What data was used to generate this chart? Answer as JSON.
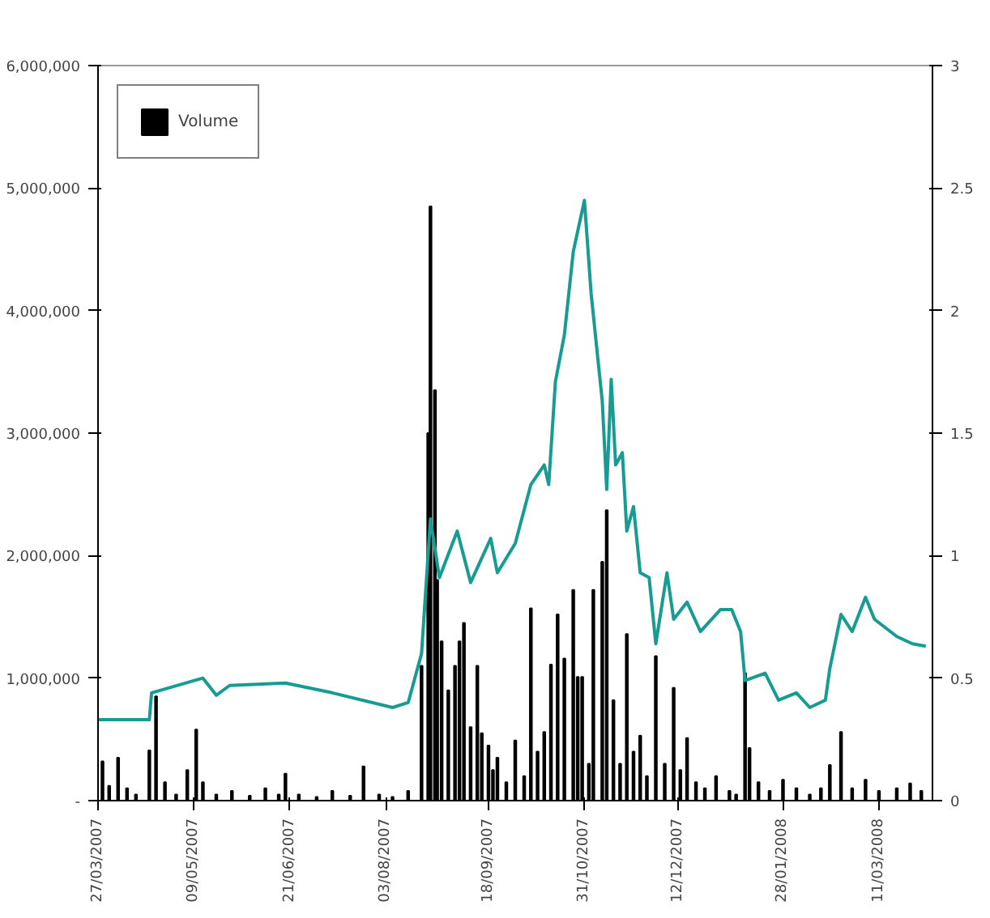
{
  "chart_data": {
    "type": "bar",
    "legend": "top left",
    "grid": false,
    "xlim": [
      "2007-03-27",
      "2008-04-04"
    ],
    "xticks": [
      {
        "value": "2007-03-27",
        "label": "27/03/2007"
      },
      {
        "value": "2007-05-09",
        "label": "09/05/2007"
      },
      {
        "value": "2007-06-21",
        "label": "21/06/2007"
      },
      {
        "value": "2007-08-03",
        "label": "03/08/2007"
      },
      {
        "value": "2007-09-18",
        "label": "18/09/2007"
      },
      {
        "value": "2007-10-31",
        "label": "31/10/2007"
      },
      {
        "value": "2007-12-12",
        "label": "12/12/2007"
      },
      {
        "value": "2008-01-28",
        "label": "28/01/2008"
      },
      {
        "value": "2008-03-11",
        "label": "11/03/2008"
      }
    ],
    "ylim": [
      0,
      6000000
    ],
    "yticks": [
      {
        "value": 0,
        "label": "-"
      },
      {
        "value": 1000000,
        "label": "1,000,000"
      },
      {
        "value": 2000000,
        "label": "2,000,000"
      },
      {
        "value": 3000000,
        "label": "3,000,000"
      },
      {
        "value": 4000000,
        "label": "4,000,000"
      },
      {
        "value": 5000000,
        "label": "5,000,000"
      },
      {
        "value": 6000000,
        "label": "6,000,000"
      }
    ],
    "y2lim": [
      0,
      3
    ],
    "y2ticks": [
      0,
      0.5,
      1,
      1.5,
      2,
      2.5,
      3
    ],
    "series": [
      {
        "name": "Volume",
        "color": "#000000",
        "x": [
          "2007-03-29",
          "2007-04-01",
          "2007-04-05",
          "2007-04-09",
          "2007-04-13",
          "2007-04-19",
          "2007-04-22",
          "2007-04-26",
          "2007-05-01",
          "2007-05-06",
          "2007-05-10",
          "2007-05-13",
          "2007-05-19",
          "2007-05-26",
          "2007-06-03",
          "2007-06-10",
          "2007-06-16",
          "2007-06-19",
          "2007-06-25",
          "2007-07-03",
          "2007-07-10",
          "2007-07-18",
          "2007-07-24",
          "2007-07-31",
          "2007-08-06",
          "2007-08-13",
          "2007-08-19",
          "2007-08-22",
          "2007-08-23",
          "2007-08-25",
          "2007-08-26",
          "2007-08-28",
          "2007-08-31",
          "2007-09-03",
          "2007-09-05",
          "2007-09-07",
          "2007-09-10",
          "2007-09-13",
          "2007-09-15",
          "2007-09-18",
          "2007-09-20",
          "2007-09-22",
          "2007-09-26",
          "2007-09-30",
          "2007-10-04",
          "2007-10-07",
          "2007-10-10",
          "2007-10-13",
          "2007-10-16",
          "2007-10-19",
          "2007-10-22",
          "2007-10-26",
          "2007-10-28",
          "2007-10-30",
          "2007-11-02",
          "2007-11-04",
          "2007-11-08",
          "2007-11-10",
          "2007-11-13",
          "2007-11-16",
          "2007-11-19",
          "2007-11-22",
          "2007-11-25",
          "2007-11-28",
          "2007-12-02",
          "2007-12-06",
          "2007-12-10",
          "2007-12-13",
          "2007-12-16",
          "2007-12-20",
          "2007-12-24",
          "2007-12-29",
          "2008-01-04",
          "2008-01-07",
          "2008-01-11",
          "2008-01-13",
          "2008-01-17",
          "2008-01-22",
          "2008-01-28",
          "2008-02-03",
          "2008-02-09",
          "2008-02-14",
          "2008-02-18",
          "2008-02-23",
          "2008-02-28",
          "2008-03-05",
          "2008-03-11",
          "2008-03-19",
          "2008-03-25",
          "2008-03-30"
        ],
        "values": [
          320000,
          120000,
          350000,
          100000,
          50000,
          410000,
          850000,
          150000,
          50000,
          250000,
          580000,
          150000,
          50000,
          80000,
          40000,
          100000,
          50000,
          220000,
          50000,
          30000,
          80000,
          40000,
          280000,
          50000,
          30000,
          80000,
          1100000,
          3000000,
          4850000,
          3350000,
          1800000,
          1300000,
          900000,
          1100000,
          1300000,
          1450000,
          600000,
          1100000,
          550000,
          450000,
          250000,
          350000,
          150000,
          490000,
          200000,
          1570000,
          400000,
          560000,
          1110000,
          1520000,
          1160000,
          1720000,
          1010000,
          1010000,
          300000,
          1720000,
          1950000,
          2370000,
          820000,
          300000,
          1360000,
          400000,
          530000,
          200000,
          1180000,
          300000,
          920000,
          250000,
          510000,
          150000,
          100000,
          200000,
          80000,
          50000,
          1040000,
          430000,
          150000,
          80000,
          170000,
          100000,
          50000,
          100000,
          290000,
          560000,
          100000,
          170000,
          80000,
          100000,
          140000,
          80000
        ]
      },
      {
        "type": "line",
        "axis": "y2",
        "color": "#169c92",
        "x": [
          "2007-03-27",
          "2007-04-19",
          "2007-04-20",
          "2007-05-13",
          "2007-05-19",
          "2007-05-25",
          "2007-06-19",
          "2007-07-10",
          "2007-08-06",
          "2007-08-13",
          "2007-08-19",
          "2007-08-23",
          "2007-08-27",
          "2007-09-04",
          "2007-09-10",
          "2007-09-19",
          "2007-09-22",
          "2007-09-30",
          "2007-10-07",
          "2007-10-13",
          "2007-10-15",
          "2007-10-18",
          "2007-10-22",
          "2007-10-26",
          "2007-10-31",
          "2007-11-03",
          "2007-11-08",
          "2007-11-10",
          "2007-11-12",
          "2007-11-14",
          "2007-11-17",
          "2007-11-19",
          "2007-11-22",
          "2007-11-25",
          "2007-11-29",
          "2007-12-02",
          "2007-12-07",
          "2007-12-10",
          "2007-12-16",
          "2007-12-22",
          "2007-12-31",
          "2008-01-05",
          "2008-01-09",
          "2008-01-11",
          "2008-01-20",
          "2008-01-26",
          "2008-02-03",
          "2008-02-09",
          "2008-02-16",
          "2008-02-18",
          "2008-02-23",
          "2008-02-28",
          "2008-03-05",
          "2008-03-09",
          "2008-03-19",
          "2008-03-26",
          "2008-04-01"
        ],
        "values": [
          0.33,
          0.33,
          0.44,
          0.5,
          0.43,
          0.47,
          0.48,
          0.44,
          0.38,
          0.4,
          0.6,
          1.15,
          0.91,
          1.1,
          0.89,
          1.07,
          0.93,
          1.05,
          1.29,
          1.37,
          1.29,
          1.71,
          1.9,
          2.24,
          2.45,
          2.07,
          1.63,
          1.27,
          1.72,
          1.37,
          1.42,
          1.1,
          1.2,
          0.93,
          0.91,
          0.64,
          0.93,
          0.74,
          0.81,
          0.69,
          0.78,
          0.78,
          0.69,
          0.49,
          0.52,
          0.41,
          0.44,
          0.38,
          0.41,
          0.54,
          0.76,
          0.69,
          0.83,
          0.74,
          0.67,
          0.64,
          0.63
        ]
      }
    ]
  }
}
